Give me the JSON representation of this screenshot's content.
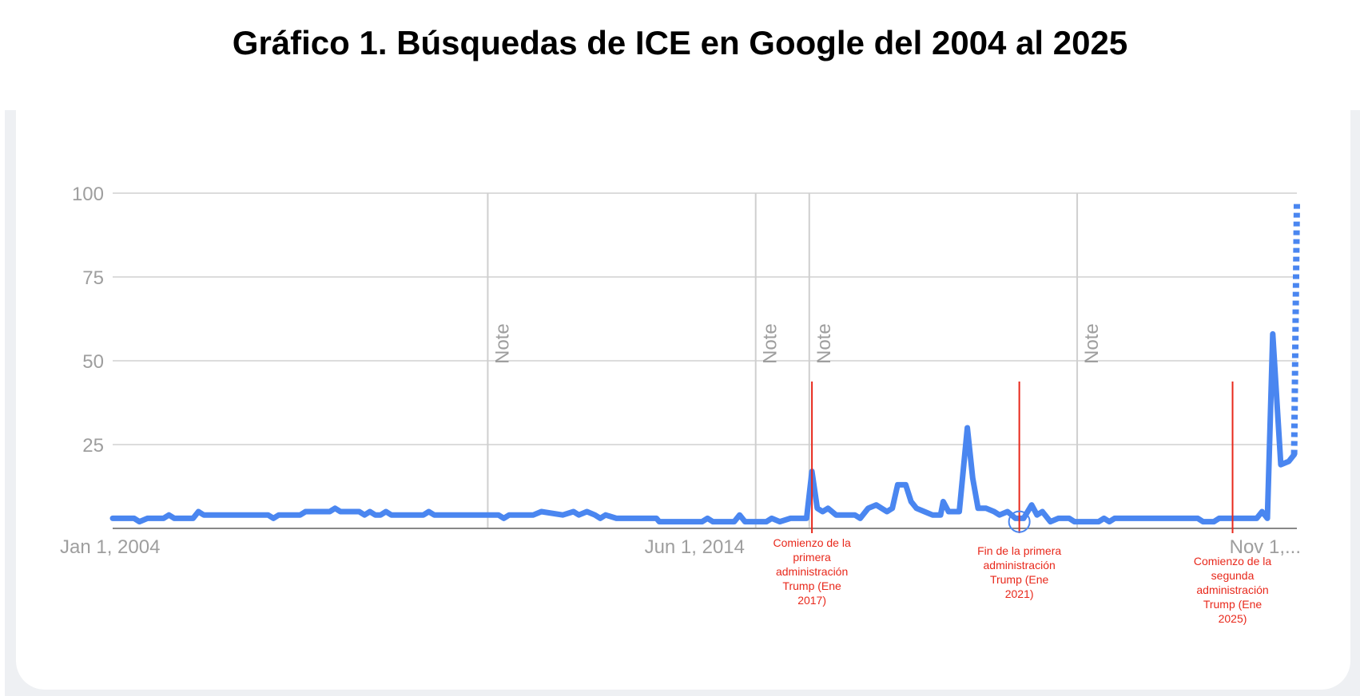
{
  "page": {
    "title": "Gráfico 1. Búsquedas de ICE en Google del 2004 al 2025"
  },
  "chart_data": {
    "type": "line",
    "title": "Gráfico 1. Búsquedas de ICE en Google del 2004 al 2025",
    "xlabel": "",
    "ylabel": "",
    "x_range": [
      2004.0,
      2025.55
    ],
    "ylim": [
      0,
      100
    ],
    "yticks": [
      "100",
      "75",
      "50",
      "25"
    ],
    "ytick_values": [
      100,
      75,
      50,
      25
    ],
    "xticks": [
      {
        "label": "Jan 1, 2004",
        "x": 2004.0
      },
      {
        "label": "Jun 1, 2014",
        "x": 2014.42
      },
      {
        "label": "Nov 1,...",
        "x": 2024.83
      }
    ],
    "grid": true,
    "colors": {
      "series": "#4a86f0",
      "annotation": "#e8281b",
      "grid": "#dcdcdc",
      "note_line": "#cfcfcf"
    },
    "notes": [
      {
        "label": "Note",
        "x": 2011.0
      },
      {
        "label": "Note",
        "x": 2016.0
      },
      {
        "label": "Note",
        "x": 2017.0
      },
      {
        "label": "Note",
        "x": 2022.0
      }
    ],
    "annotations": [
      {
        "x": 2017.05,
        "lines": [
          "Comienzo de la",
          "primera",
          "administración",
          "Trump (Ene",
          "2017)"
        ]
      },
      {
        "x": 2020.92,
        "lines": [
          "Fin de la primera",
          "administración",
          "Trump (Ene",
          "2021)"
        ]
      },
      {
        "x": 2024.9,
        "lines": [
          "Comienzo de la",
          "segunda",
          "administración",
          "Trump (Ene",
          "2025)"
        ]
      }
    ],
    "series": [
      {
        "values": [
          [
            2004.0,
            3
          ],
          [
            2004.4,
            3
          ],
          [
            2004.5,
            2
          ],
          [
            2004.65,
            3
          ],
          [
            2004.95,
            3
          ],
          [
            2005.05,
            4
          ],
          [
            2005.15,
            3
          ],
          [
            2005.5,
            3
          ],
          [
            2005.6,
            5
          ],
          [
            2005.7,
            4
          ],
          [
            2006.5,
            4
          ],
          [
            2006.9,
            4
          ],
          [
            2007.0,
            3
          ],
          [
            2007.1,
            4
          ],
          [
            2007.5,
            4
          ],
          [
            2007.6,
            5
          ],
          [
            2008.05,
            5
          ],
          [
            2008.15,
            6
          ],
          [
            2008.25,
            5
          ],
          [
            2008.6,
            5
          ],
          [
            2008.7,
            4
          ],
          [
            2008.8,
            5
          ],
          [
            2008.9,
            4
          ],
          [
            2009.0,
            4
          ],
          [
            2009.1,
            5
          ],
          [
            2009.2,
            4
          ],
          [
            2009.8,
            4
          ],
          [
            2009.9,
            5
          ],
          [
            2010.0,
            4
          ],
          [
            2011.2,
            4
          ],
          [
            2011.3,
            3
          ],
          [
            2011.4,
            4
          ],
          [
            2011.85,
            4
          ],
          [
            2012.0,
            5
          ],
          [
            2012.4,
            4
          ],
          [
            2012.6,
            5
          ],
          [
            2012.7,
            4
          ],
          [
            2012.85,
            5
          ],
          [
            2013.0,
            4
          ],
          [
            2013.1,
            3
          ],
          [
            2013.2,
            4
          ],
          [
            2013.4,
            3
          ],
          [
            2014.15,
            3
          ],
          [
            2014.2,
            2
          ],
          [
            2015.0,
            2
          ],
          [
            2015.1,
            3
          ],
          [
            2015.2,
            2
          ],
          [
            2015.6,
            2
          ],
          [
            2015.7,
            4
          ],
          [
            2015.8,
            2
          ],
          [
            2016.2,
            2
          ],
          [
            2016.3,
            3
          ],
          [
            2016.45,
            2
          ],
          [
            2016.65,
            3
          ],
          [
            2016.95,
            3
          ],
          [
            2017.05,
            17
          ],
          [
            2017.15,
            6
          ],
          [
            2017.25,
            5
          ],
          [
            2017.35,
            6
          ],
          [
            2017.5,
            4
          ],
          [
            2017.85,
            4
          ],
          [
            2017.95,
            3
          ],
          [
            2018.1,
            6
          ],
          [
            2018.25,
            7
          ],
          [
            2018.45,
            5
          ],
          [
            2018.55,
            6
          ],
          [
            2018.65,
            13
          ],
          [
            2018.8,
            13
          ],
          [
            2018.9,
            8
          ],
          [
            2019.0,
            6
          ],
          [
            2019.15,
            5
          ],
          [
            2019.3,
            4
          ],
          [
            2019.45,
            4
          ],
          [
            2019.5,
            8
          ],
          [
            2019.6,
            5
          ],
          [
            2019.8,
            5
          ],
          [
            2019.95,
            30
          ],
          [
            2020.05,
            15
          ],
          [
            2020.15,
            6
          ],
          [
            2020.3,
            6
          ],
          [
            2020.45,
            5
          ],
          [
            2020.55,
            4
          ],
          [
            2020.7,
            5
          ],
          [
            2020.85,
            3
          ],
          [
            2021.0,
            3
          ],
          [
            2021.15,
            7
          ],
          [
            2021.25,
            4
          ],
          [
            2021.35,
            5
          ],
          [
            2021.5,
            2
          ],
          [
            2021.65,
            3
          ],
          [
            2021.85,
            3
          ],
          [
            2021.95,
            2
          ],
          [
            2022.4,
            2
          ],
          [
            2022.5,
            3
          ],
          [
            2022.6,
            2
          ],
          [
            2022.7,
            3
          ],
          [
            2024.25,
            3
          ],
          [
            2024.35,
            2
          ],
          [
            2024.55,
            2
          ],
          [
            2024.65,
            3
          ],
          [
            2025.35,
            3
          ],
          [
            2025.45,
            5
          ],
          [
            2025.55,
            3
          ],
          [
            2025.65,
            58
          ],
          [
            2025.8,
            19
          ],
          [
            2025.95,
            20
          ],
          [
            2026.05,
            22
          ]
        ]
      },
      {
        "values": [
          [
            2026.05,
            22
          ],
          [
            2026.1,
            97
          ]
        ]
      }
    ]
  }
}
